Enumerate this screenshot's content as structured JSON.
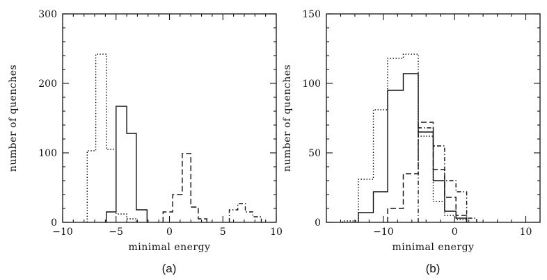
{
  "chart_data": [
    {
      "type": "histogram",
      "panel_label": "(a)",
      "xlabel": "minimal energy",
      "ylabel": "number of quenches",
      "xlim": [
        -10,
        10
      ],
      "ylim": [
        0,
        300
      ],
      "x_ticks": [
        -10,
        -5,
        0,
        5,
        10
      ],
      "y_ticks": [
        0,
        100,
        200,
        300
      ],
      "series": [
        {
          "style": "solid",
          "bins": [
            {
              "x0": -5.9,
              "x1": -5.0,
              "y": 15
            },
            {
              "x0": -5.0,
              "x1": -4.0,
              "y": 167
            },
            {
              "x0": -4.0,
              "x1": -3.1,
              "y": 128
            },
            {
              "x0": -3.1,
              "x1": -2.1,
              "y": 18
            }
          ]
        },
        {
          "style": "dotted",
          "bins": [
            {
              "x0": -7.7,
              "x1": -6.9,
              "y": 103
            },
            {
              "x0": -6.9,
              "x1": -5.9,
              "y": 242
            },
            {
              "x0": -5.9,
              "x1": -5.0,
              "y": 105
            },
            {
              "x0": -5.0,
              "x1": -4.0,
              "y": 12
            },
            {
              "x0": -4.0,
              "x1": -3.1,
              "y": 5
            }
          ]
        },
        {
          "style": "dashed",
          "bins": [
            {
              "x0": -0.6,
              "x1": 0.3,
              "y": 15
            },
            {
              "x0": 0.3,
              "x1": 1.2,
              "y": 40
            },
            {
              "x0": 1.2,
              "x1": 2.0,
              "y": 99
            },
            {
              "x0": 2.0,
              "x1": 2.7,
              "y": 22
            },
            {
              "x0": 2.7,
              "x1": 3.5,
              "y": 5
            }
          ]
        },
        {
          "style": "dash-dot",
          "bins": [
            {
              "x0": 5.6,
              "x1": 6.4,
              "y": 18
            },
            {
              "x0": 6.4,
              "x1": 7.1,
              "y": 27
            },
            {
              "x0": 7.1,
              "x1": 7.8,
              "y": 15
            },
            {
              "x0": 7.8,
              "x1": 8.6,
              "y": 8
            }
          ]
        }
      ]
    },
    {
      "type": "histogram",
      "panel_label": "(b)",
      "xlabel": "minimal energy",
      "ylabel": "number of quenches",
      "xlim": [
        -18,
        12
      ],
      "ylim": [
        0,
        150
      ],
      "x_ticks": [
        -10,
        0,
        10
      ],
      "y_ticks": [
        0,
        50,
        100,
        150
      ],
      "series": [
        {
          "style": "solid",
          "bins": [
            {
              "x0": -13.5,
              "x1": -11.4,
              "y": 7
            },
            {
              "x0": -11.4,
              "x1": -9.4,
              "y": 22
            },
            {
              "x0": -9.4,
              "x1": -7.2,
              "y": 95
            },
            {
              "x0": -7.2,
              "x1": -5.1,
              "y": 107
            },
            {
              "x0": -5.1,
              "x1": -3.0,
              "y": 65
            },
            {
              "x0": -3.0,
              "x1": -1.4,
              "y": 30
            },
            {
              "x0": -1.4,
              "x1": 0.2,
              "y": 8
            },
            {
              "x0": 0.2,
              "x1": 1.7,
              "y": 3
            }
          ]
        },
        {
          "style": "dotted",
          "bins": [
            {
              "x0": -15.7,
              "x1": -13.5,
              "y": 1
            },
            {
              "x0": -13.5,
              "x1": -11.4,
              "y": 31
            },
            {
              "x0": -11.4,
              "x1": -9.4,
              "y": 81
            },
            {
              "x0": -9.4,
              "x1": -7.2,
              "y": 118
            },
            {
              "x0": -7.2,
              "x1": -5.1,
              "y": 121
            },
            {
              "x0": -5.1,
              "x1": -3.0,
              "y": 62
            },
            {
              "x0": -3.0,
              "x1": -1.4,
              "y": 15
            },
            {
              "x0": -1.4,
              "x1": 0.2,
              "y": 5
            },
            {
              "x0": 0.2,
              "x1": 1.7,
              "y": 2
            }
          ]
        },
        {
          "style": "dashed",
          "bins": [
            {
              "x0": -9.4,
              "x1": -7.2,
              "y": 10
            },
            {
              "x0": -7.2,
              "x1": -5.1,
              "y": 35
            },
            {
              "x0": -5.1,
              "x1": -3.0,
              "y": 72
            },
            {
              "x0": -3.0,
              "x1": -1.4,
              "y": 38
            },
            {
              "x0": -1.4,
              "x1": 0.2,
              "y": 18
            },
            {
              "x0": 0.2,
              "x1": 1.7,
              "y": 5
            }
          ]
        },
        {
          "style": "dash-dot",
          "bins": [
            {
              "x0": -5.1,
              "x1": -3.0,
              "y": 68
            },
            {
              "x0": -3.0,
              "x1": -1.4,
              "y": 55
            },
            {
              "x0": -1.4,
              "x1": 0.2,
              "y": 30
            },
            {
              "x0": 0.2,
              "x1": 1.7,
              "y": 22
            },
            {
              "x0": 1.7,
              "x1": 3.1,
              "y": 3
            }
          ]
        }
      ]
    }
  ]
}
